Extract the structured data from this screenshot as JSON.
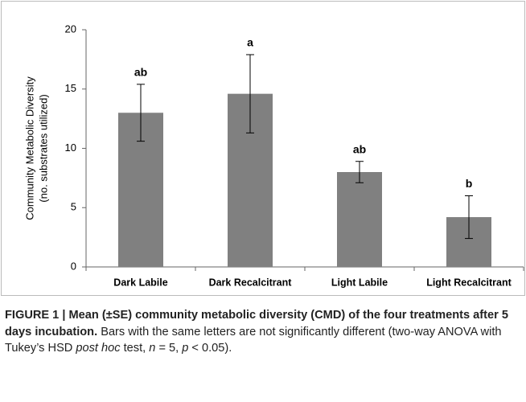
{
  "chart_data": {
    "type": "bar",
    "ylabel": [
      "Community Metabolic Diversity",
      "(no. substrates utilized)"
    ],
    "categories": [
      "Dark Labile",
      "Dark Recalcitrant",
      "Light Labile",
      "Light Recalcitrant"
    ],
    "values": [
      13.0,
      14.6,
      8.0,
      4.2
    ],
    "errors": [
      2.4,
      3.3,
      0.9,
      1.8
    ],
    "annotations": [
      "ab",
      "a",
      "ab",
      "b"
    ],
    "color": "#808080",
    "ylim": [
      0,
      20
    ],
    "yticks": [
      0,
      5,
      10,
      15,
      20
    ],
    "grid": false
  },
  "caption": [
    {
      "text": "FIGURE 1 | Mean (±SE) community metabolic diversity (CMD) of the four treatments after 5 days incubation.",
      "style": "bold"
    },
    {
      "text": " Bars with the same letters are not significantly different (two-way ANOVA with Tukey’s HSD ",
      "style": "normal"
    },
    {
      "text": "post hoc",
      "style": "italic"
    },
    {
      "text": " test, ",
      "style": "normal"
    },
    {
      "text": "n",
      "style": "italic"
    },
    {
      "text": " = 5, ",
      "style": "normal"
    },
    {
      "text": "p",
      "style": "italic"
    },
    {
      "text": " < 0.05).",
      "style": "normal"
    }
  ]
}
